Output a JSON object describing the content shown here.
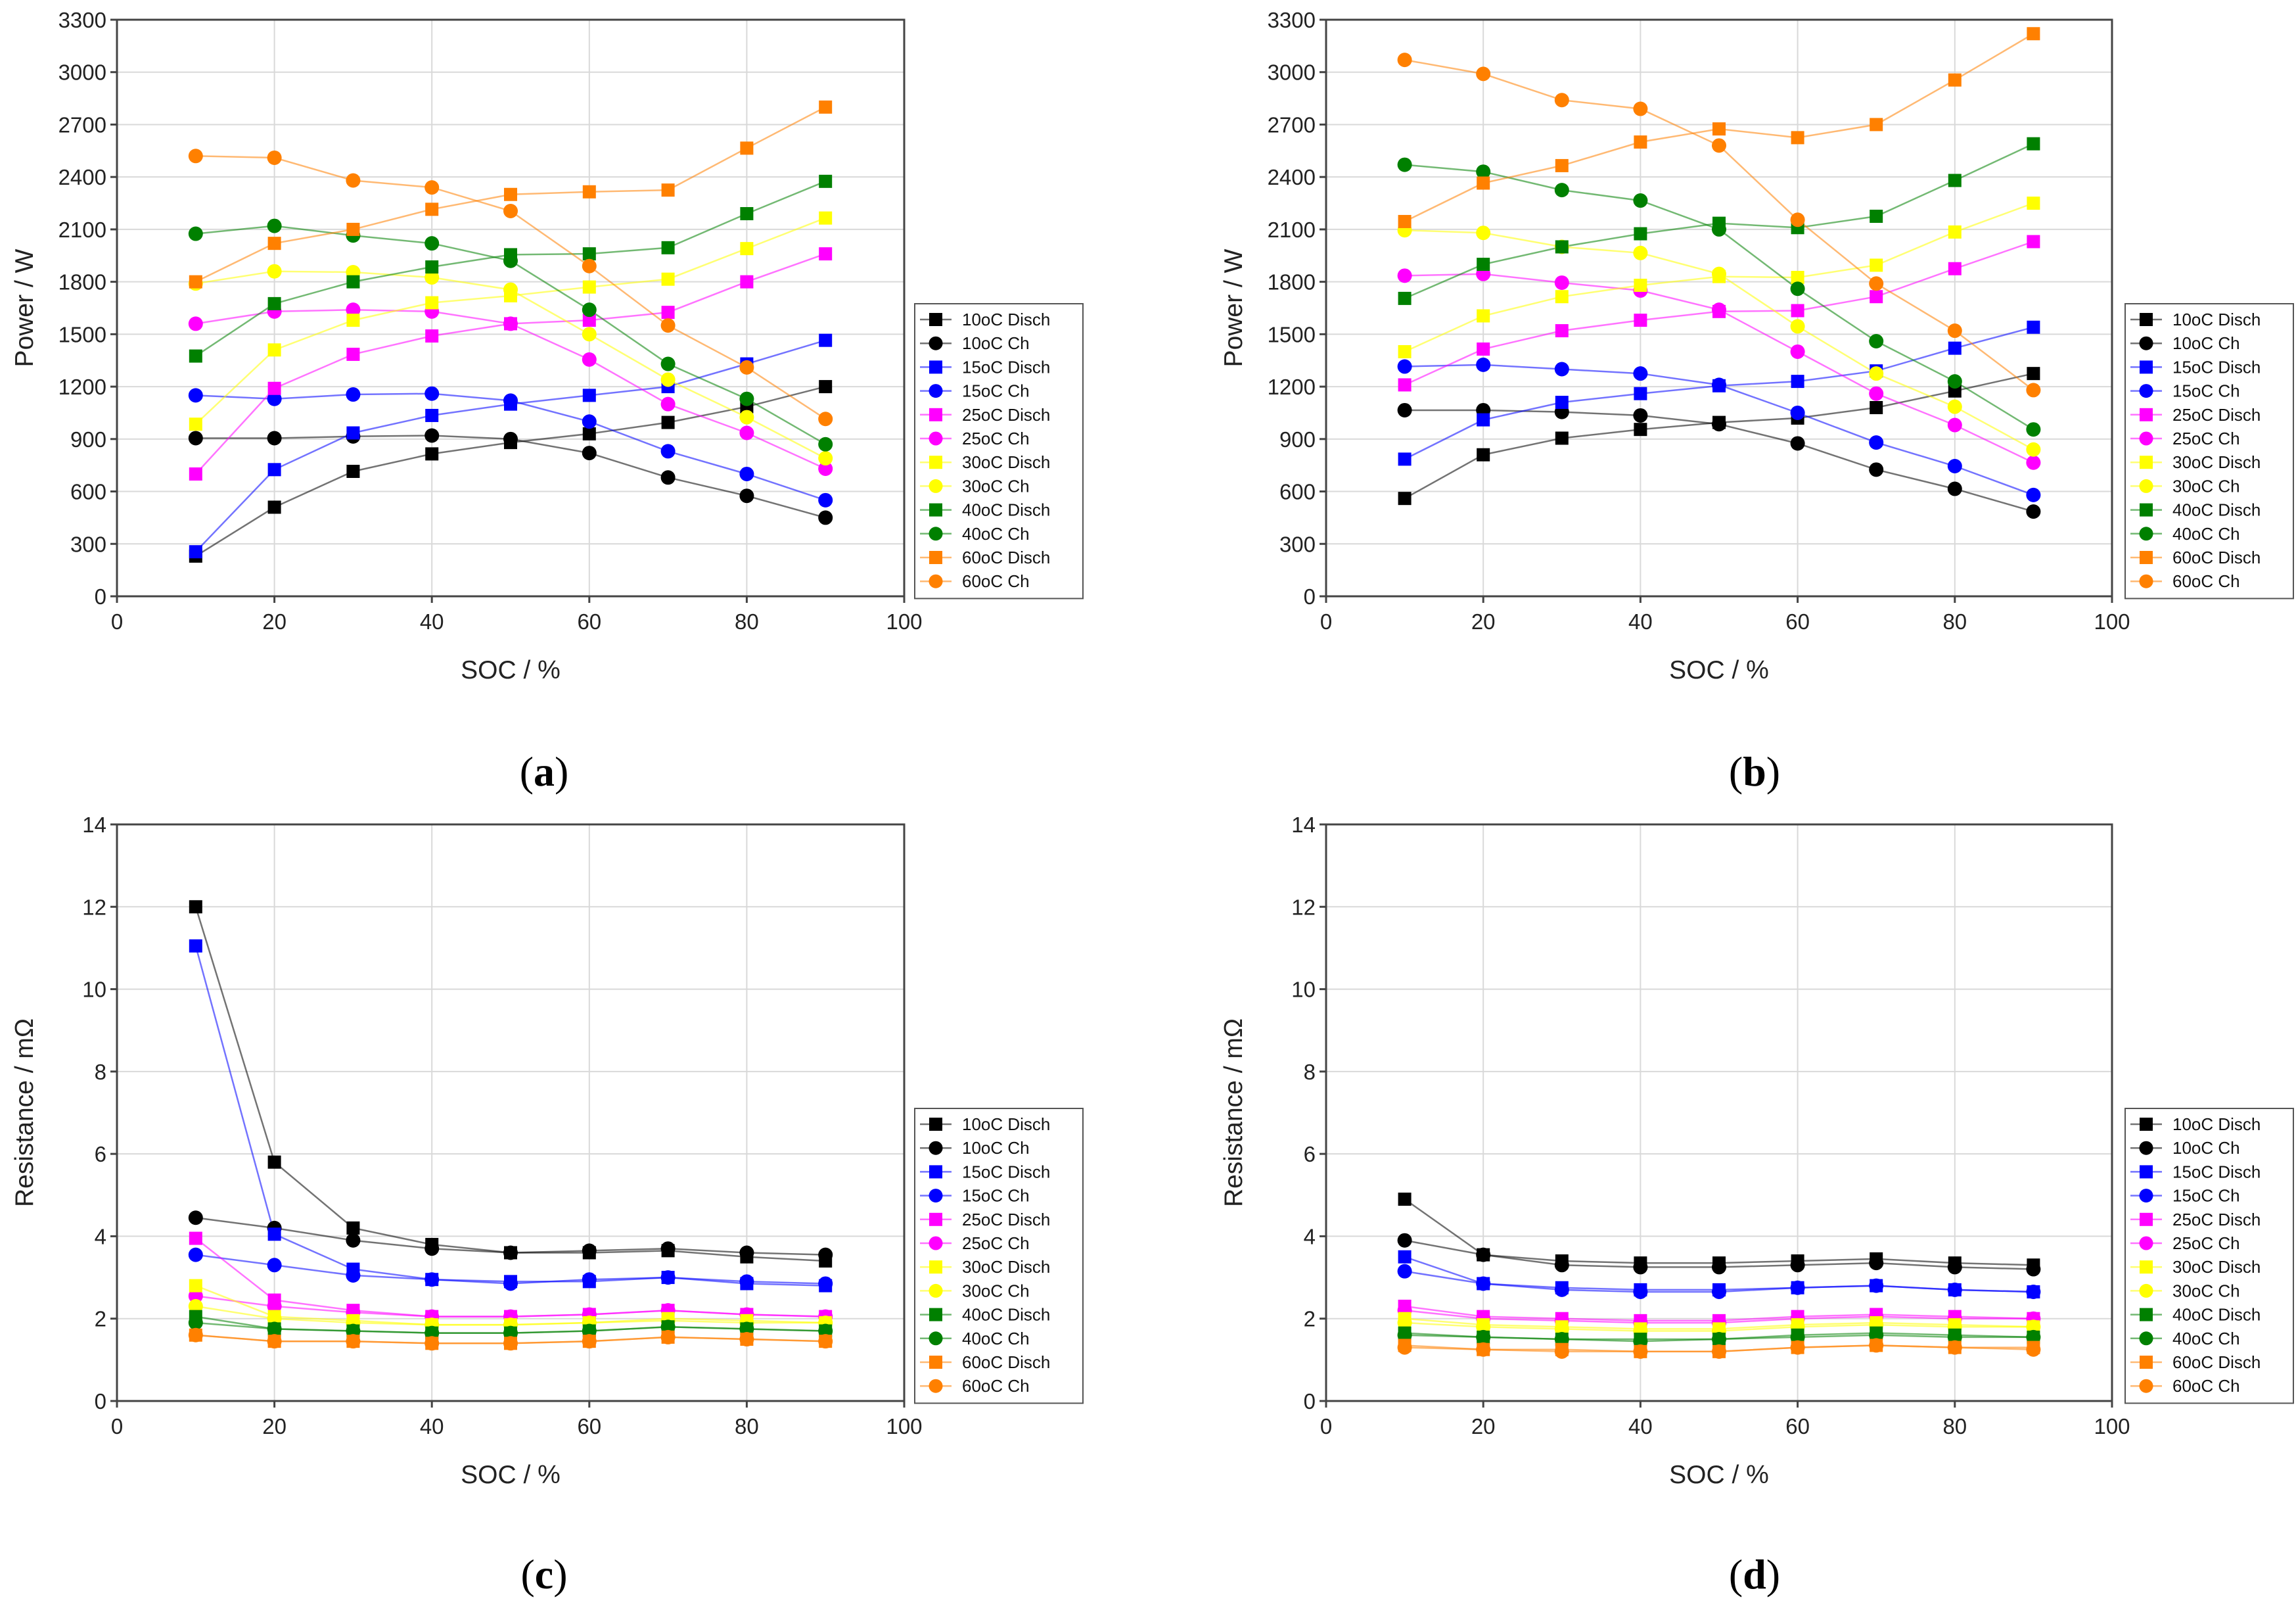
{
  "chart_data": [
    {
      "type": "line",
      "panel": "a",
      "caption_open": "(",
      "caption_letter": "a",
      "caption_close": ")",
      "xlabel": "SOC / %",
      "ylabel": "Power / W",
      "xlim": [
        0,
        100
      ],
      "ylim": [
        0,
        3300
      ],
      "xticks": [
        0,
        20,
        40,
        60,
        80,
        100
      ],
      "yticks": [
        0,
        300,
        600,
        900,
        1200,
        1500,
        1800,
        2100,
        2400,
        2700,
        3000,
        3300
      ],
      "x": [
        10,
        20,
        30,
        40,
        50,
        60,
        70,
        80,
        90
      ],
      "legend": "right",
      "series": [
        {
          "name": "10oC Disch",
          "color": "#000000",
          "marker": "square",
          "values": [
            230,
            510,
            715,
            815,
            880,
            930,
            995,
            1085,
            1200
          ]
        },
        {
          "name": "10oC Ch",
          "color": "#000000",
          "marker": "circle",
          "values": [
            905,
            905,
            915,
            920,
            900,
            820,
            680,
            575,
            450
          ]
        },
        {
          "name": "15oC  Disch",
          "color": "#0000ff",
          "marker": "square",
          "values": [
            255,
            725,
            935,
            1035,
            1100,
            1150,
            1200,
            1330,
            1465
          ]
        },
        {
          "name": "15oC Ch",
          "color": "#0000ff",
          "marker": "circle",
          "values": [
            1150,
            1130,
            1155,
            1160,
            1120,
            1000,
            830,
            700,
            550
          ]
        },
        {
          "name": "25oC Disch",
          "color": "#ff00ff",
          "marker": "square",
          "values": [
            700,
            1190,
            1385,
            1490,
            1560,
            1580,
            1625,
            1800,
            1960
          ]
        },
        {
          "name": "25oC Ch",
          "color": "#ff00ff",
          "marker": "circle",
          "values": [
            1560,
            1630,
            1640,
            1630,
            1560,
            1355,
            1100,
            935,
            730
          ]
        },
        {
          "name": "30oC Disch",
          "color": "#ffff00",
          "marker": "square",
          "values": [
            985,
            1410,
            1580,
            1680,
            1720,
            1770,
            1815,
            1990,
            2165
          ]
        },
        {
          "name": "30oC Ch",
          "color": "#ffff00",
          "marker": "circle",
          "values": [
            1790,
            1860,
            1855,
            1825,
            1755,
            1500,
            1240,
            1025,
            790
          ]
        },
        {
          "name": "40oC Disch",
          "color": "#008000",
          "marker": "square",
          "values": [
            1375,
            1675,
            1800,
            1885,
            1955,
            1960,
            1995,
            2190,
            2375
          ]
        },
        {
          "name": "40oC Ch",
          "color": "#008000",
          "marker": "circle",
          "values": [
            2075,
            2120,
            2065,
            2020,
            1920,
            1640,
            1330,
            1130,
            870
          ]
        },
        {
          "name": "60oC Disch",
          "color": "#ff8000",
          "marker": "square",
          "values": [
            1800,
            2020,
            2100,
            2215,
            2300,
            2315,
            2325,
            2565,
            2800
          ]
        },
        {
          "name": "60oC Ch",
          "color": "#ff8000",
          "marker": "circle",
          "values": [
            2520,
            2510,
            2380,
            2340,
            2205,
            1890,
            1550,
            1310,
            1015
          ]
        }
      ]
    },
    {
      "type": "line",
      "panel": "b",
      "caption_open": "(",
      "caption_letter": "b",
      "caption_close": ")",
      "xlabel": "SOC / %",
      "ylabel": "Power / W",
      "xlim": [
        0,
        100
      ],
      "ylim": [
        0,
        3300
      ],
      "xticks": [
        0,
        20,
        40,
        60,
        80,
        100
      ],
      "yticks": [
        0,
        300,
        600,
        900,
        1200,
        1500,
        1800,
        2100,
        2400,
        2700,
        3000,
        3300
      ],
      "x": [
        10,
        20,
        30,
        40,
        50,
        60,
        70,
        80,
        90
      ],
      "legend": "right",
      "series": [
        {
          "name": "10oC Disch",
          "color": "#000000",
          "marker": "square",
          "values": [
            560,
            810,
            905,
            955,
            995,
            1020,
            1080,
            1175,
            1275
          ]
        },
        {
          "name": "10oC Ch",
          "color": "#000000",
          "marker": "circle",
          "values": [
            1065,
            1065,
            1055,
            1035,
            985,
            875,
            725,
            615,
            485
          ]
        },
        {
          "name": "15oC  Disch",
          "color": "#0000ff",
          "marker": "square",
          "values": [
            785,
            1010,
            1110,
            1160,
            1205,
            1230,
            1290,
            1420,
            1540
          ]
        },
        {
          "name": "15oC Ch",
          "color": "#0000ff",
          "marker": "circle",
          "values": [
            1315,
            1325,
            1300,
            1275,
            1210,
            1050,
            880,
            745,
            580
          ]
        },
        {
          "name": "25oC Disch",
          "color": "#ff00ff",
          "marker": "square",
          "values": [
            1210,
            1415,
            1520,
            1580,
            1630,
            1635,
            1715,
            1875,
            2030
          ]
        },
        {
          "name": "25oC Ch",
          "color": "#ff00ff",
          "marker": "circle",
          "values": [
            1835,
            1845,
            1795,
            1750,
            1640,
            1400,
            1160,
            980,
            765
          ]
        },
        {
          "name": "30oC Disch",
          "color": "#ffff00",
          "marker": "square",
          "values": [
            1400,
            1605,
            1715,
            1780,
            1830,
            1825,
            1895,
            2085,
            2250
          ]
        },
        {
          "name": "30oC Ch",
          "color": "#ffff00",
          "marker": "circle",
          "values": [
            2095,
            2080,
            2000,
            1965,
            1845,
            1545,
            1275,
            1085,
            840
          ]
        },
        {
          "name": "40oC Disch",
          "color": "#008000",
          "marker": "square",
          "values": [
            1705,
            1900,
            2000,
            2075,
            2135,
            2110,
            2175,
            2380,
            2590
          ]
        },
        {
          "name": "40oC Ch",
          "color": "#008000",
          "marker": "circle",
          "values": [
            2470,
            2430,
            2325,
            2265,
            2100,
            1760,
            1460,
            1230,
            955
          ]
        },
        {
          "name": "60oC Disch",
          "color": "#ff8000",
          "marker": "square",
          "values": [
            2145,
            2365,
            2465,
            2600,
            2675,
            2625,
            2700,
            2955,
            3220
          ]
        },
        {
          "name": "60oC Ch",
          "color": "#ff8000",
          "marker": "circle",
          "values": [
            3070,
            2990,
            2840,
            2790,
            2580,
            2155,
            1790,
            1520,
            1180
          ]
        }
      ]
    },
    {
      "type": "line",
      "panel": "c",
      "caption_open": "(",
      "caption_letter": "c",
      "caption_close": ")",
      "xlabel": "SOC / %",
      "ylabel": "Resistance / mΩ",
      "xlim": [
        0,
        100
      ],
      "ylim": [
        0,
        14
      ],
      "xticks": [
        0,
        20,
        40,
        60,
        80,
        100
      ],
      "yticks": [
        0,
        2,
        4,
        6,
        8,
        10,
        12,
        14
      ],
      "x": [
        10,
        20,
        30,
        40,
        50,
        60,
        70,
        80,
        90
      ],
      "legend": "right",
      "series": [
        {
          "name": "10oC Disch",
          "color": "#000000",
          "marker": "square",
          "values": [
            12.0,
            5.8,
            4.2,
            3.8,
            3.6,
            3.6,
            3.65,
            3.5,
            3.4
          ]
        },
        {
          "name": "10oC Ch",
          "color": "#000000",
          "marker": "circle",
          "values": [
            4.45,
            4.2,
            3.9,
            3.7,
            3.6,
            3.65,
            3.7,
            3.6,
            3.55
          ]
        },
        {
          "name": "15oC  Disch",
          "color": "#0000ff",
          "marker": "square",
          "values": [
            11.05,
            4.05,
            3.2,
            2.95,
            2.9,
            2.9,
            3.0,
            2.85,
            2.8
          ]
        },
        {
          "name": "15oC Ch",
          "color": "#0000ff",
          "marker": "circle",
          "values": [
            3.55,
            3.3,
            3.05,
            2.95,
            2.85,
            2.95,
            3.0,
            2.9,
            2.85
          ]
        },
        {
          "name": "25oC Disch",
          "color": "#ff00ff",
          "marker": "square",
          "values": [
            3.95,
            2.45,
            2.2,
            2.05,
            2.05,
            2.1,
            2.2,
            2.1,
            2.05
          ]
        },
        {
          "name": "25oC Ch",
          "color": "#ff00ff",
          "marker": "circle",
          "values": [
            2.55,
            2.3,
            2.15,
            2.05,
            2.05,
            2.1,
            2.2,
            2.1,
            2.05
          ]
        },
        {
          "name": "30oC Disch",
          "color": "#ffff00",
          "marker": "square",
          "values": [
            2.8,
            2.05,
            1.95,
            1.85,
            1.85,
            1.9,
            2.0,
            1.95,
            1.9
          ]
        },
        {
          "name": "30oC Ch",
          "color": "#ffff00",
          "marker": "circle",
          "values": [
            2.3,
            2.0,
            1.9,
            1.85,
            1.85,
            1.9,
            1.95,
            1.9,
            1.9
          ]
        },
        {
          "name": "40oC Disch",
          "color": "#008000",
          "marker": "square",
          "values": [
            2.05,
            1.75,
            1.7,
            1.65,
            1.65,
            1.7,
            1.8,
            1.75,
            1.7
          ]
        },
        {
          "name": "40oC Ch",
          "color": "#008000",
          "marker": "circle",
          "values": [
            1.9,
            1.75,
            1.7,
            1.65,
            1.65,
            1.7,
            1.8,
            1.75,
            1.7
          ]
        },
        {
          "name": "60oC Disch",
          "color": "#ff8000",
          "marker": "square",
          "values": [
            1.6,
            1.45,
            1.45,
            1.4,
            1.4,
            1.45,
            1.55,
            1.5,
            1.45
          ]
        },
        {
          "name": "60oC Ch",
          "color": "#ff8000",
          "marker": "circle",
          "values": [
            1.6,
            1.45,
            1.45,
            1.4,
            1.4,
            1.45,
            1.55,
            1.5,
            1.45
          ]
        }
      ]
    },
    {
      "type": "line",
      "panel": "d",
      "caption_open": "(",
      "caption_letter": "d",
      "caption_close": ")",
      "xlabel": "SOC / %",
      "ylabel": "Resistance / mΩ",
      "xlim": [
        0,
        100
      ],
      "ylim": [
        0,
        14
      ],
      "xticks": [
        0,
        20,
        40,
        60,
        80,
        100
      ],
      "yticks": [
        0,
        2,
        4,
        6,
        8,
        10,
        12,
        14
      ],
      "x": [
        10,
        20,
        30,
        40,
        50,
        60,
        70,
        80,
        90
      ],
      "legend": "right",
      "series": [
        {
          "name": "10oC Disch",
          "color": "#000000",
          "marker": "square",
          "values": [
            4.9,
            3.55,
            3.4,
            3.35,
            3.35,
            3.4,
            3.45,
            3.35,
            3.3
          ]
        },
        {
          "name": "10oC Ch",
          "color": "#000000",
          "marker": "circle",
          "values": [
            3.9,
            3.55,
            3.3,
            3.25,
            3.25,
            3.3,
            3.35,
            3.25,
            3.2
          ]
        },
        {
          "name": "15oC  Disch",
          "color": "#0000ff",
          "marker": "square",
          "values": [
            3.5,
            2.85,
            2.75,
            2.7,
            2.7,
            2.75,
            2.8,
            2.7,
            2.65
          ]
        },
        {
          "name": "15oC Ch",
          "color": "#0000ff",
          "marker": "circle",
          "values": [
            3.15,
            2.85,
            2.7,
            2.65,
            2.65,
            2.75,
            2.8,
            2.7,
            2.65
          ]
        },
        {
          "name": "25oC Disch",
          "color": "#ff00ff",
          "marker": "square",
          "values": [
            2.3,
            2.05,
            2.0,
            1.95,
            1.95,
            2.05,
            2.1,
            2.05,
            2.0
          ]
        },
        {
          "name": "25oC Ch",
          "color": "#ff00ff",
          "marker": "circle",
          "values": [
            2.2,
            2.0,
            1.95,
            1.9,
            1.9,
            2.0,
            2.05,
            2.0,
            2.0
          ]
        },
        {
          "name": "30oC Disch",
          "color": "#ffff00",
          "marker": "square",
          "values": [
            2.0,
            1.85,
            1.8,
            1.75,
            1.75,
            1.85,
            1.9,
            1.85,
            1.8
          ]
        },
        {
          "name": "30oC Ch",
          "color": "#ffff00",
          "marker": "circle",
          "values": [
            1.9,
            1.8,
            1.75,
            1.7,
            1.7,
            1.8,
            1.85,
            1.8,
            1.8
          ]
        },
        {
          "name": "40oC Disch",
          "color": "#008000",
          "marker": "square",
          "values": [
            1.65,
            1.55,
            1.5,
            1.5,
            1.5,
            1.6,
            1.65,
            1.6,
            1.55
          ]
        },
        {
          "name": "40oC Ch",
          "color": "#008000",
          "marker": "circle",
          "values": [
            1.6,
            1.55,
            1.5,
            1.45,
            1.5,
            1.55,
            1.6,
            1.55,
            1.55
          ]
        },
        {
          "name": "60oC Disch",
          "color": "#ff8000",
          "marker": "square",
          "values": [
            1.35,
            1.25,
            1.25,
            1.2,
            1.2,
            1.3,
            1.35,
            1.3,
            1.3
          ]
        },
        {
          "name": "60oC Ch",
          "color": "#ff8000",
          "marker": "circle",
          "values": [
            1.3,
            1.25,
            1.2,
            1.2,
            1.2,
            1.3,
            1.35,
            1.3,
            1.25
          ]
        }
      ]
    }
  ]
}
